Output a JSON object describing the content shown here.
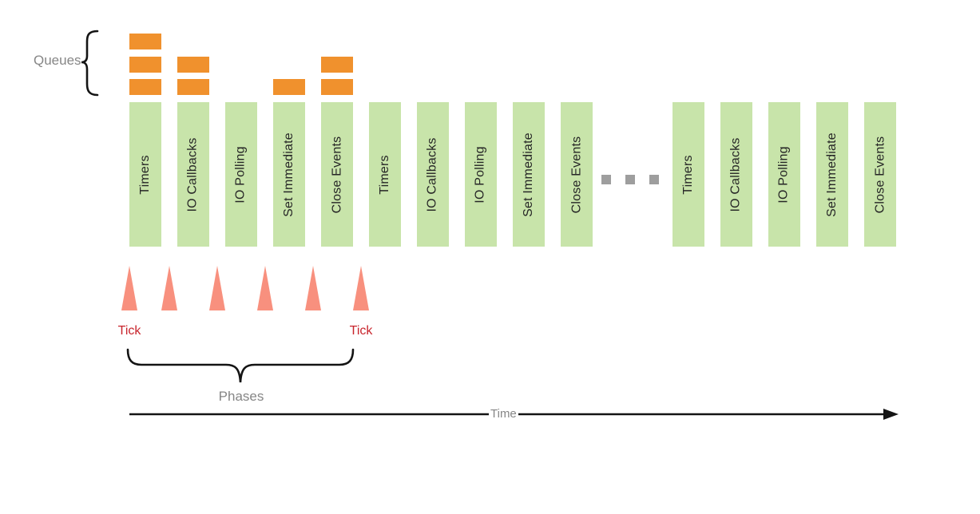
{
  "diagram": {
    "queues_label": "Queues",
    "phases_label": "Phases",
    "time_label": "Time",
    "groups": [
      {
        "name": "loop-iteration-1",
        "phases": [
          {
            "name": "Timers",
            "queued_items": 3
          },
          {
            "name": "IO Callbacks",
            "queued_items": 2
          },
          {
            "name": "IO Polling",
            "queued_items": 0
          },
          {
            "name": "Set Immediate",
            "queued_items": 1
          },
          {
            "name": "Close Events",
            "queued_items": 2
          }
        ]
      },
      {
        "name": "loop-iteration-2",
        "phases": [
          {
            "name": "Timers",
            "queued_items": 0
          },
          {
            "name": "IO Callbacks",
            "queued_items": 0
          },
          {
            "name": "IO Polling",
            "queued_items": 0
          },
          {
            "name": "Set Immediate",
            "queued_items": 0
          },
          {
            "name": "Close Events",
            "queued_items": 0
          }
        ]
      },
      {
        "name": "loop-iteration-n",
        "phases": [
          {
            "name": "Timers",
            "queued_items": 0
          },
          {
            "name": "IO Callbacks",
            "queued_items": 0
          },
          {
            "name": "IO Polling",
            "queued_items": 0
          },
          {
            "name": "Set Immediate",
            "queued_items": 0
          },
          {
            "name": "Close Events",
            "queued_items": 0
          }
        ]
      }
    ],
    "ticks": [
      {
        "label": "Tick"
      },
      {
        "label": ""
      },
      {
        "label": ""
      },
      {
        "label": ""
      },
      {
        "label": ""
      },
      {
        "label": "Tick"
      }
    ],
    "ellipsis_dot_count": 3,
    "colors": {
      "queue_block": "#F0912D",
      "phase_bar": "#C8E4AA",
      "tick_triangle": "#F8907E",
      "tick_text": "#C8242C",
      "gray_label": "#868686",
      "bar_text": "#262626",
      "ellipsis_gray": "#9E9E9E",
      "stroke": "#141414"
    }
  }
}
